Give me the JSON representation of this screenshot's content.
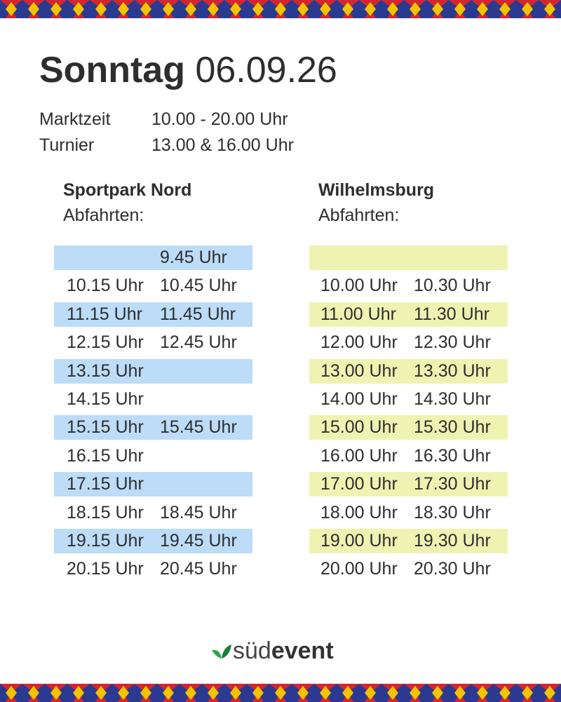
{
  "header": {
    "day": "Sonntag",
    "date": "06.09.26"
  },
  "info": [
    [
      "Marktzeit",
      "10.00 - 20.00 Uhr"
    ],
    [
      "Turnier",
      "13.00 & 16.00 Uhr"
    ]
  ],
  "columns": [
    {
      "name": "Sportpark Nord",
      "label": "Abfahrten:",
      "color": "#bcdcf7",
      "rows": [
        [
          null,
          "9.45 Uhr"
        ],
        [
          "10.15 Uhr",
          "10.45 Uhr"
        ],
        [
          "11.15 Uhr",
          "11.45 Uhr"
        ],
        [
          "12.15 Uhr",
          "12.45 Uhr"
        ],
        [
          "13.15 Uhr",
          null
        ],
        [
          "14.15 Uhr",
          null
        ],
        [
          "15.15 Uhr",
          "15.45 Uhr"
        ],
        [
          "16.15 Uhr",
          null
        ],
        [
          "17.15 Uhr",
          null
        ],
        [
          "18.15 Uhr",
          "18.45 Uhr"
        ],
        [
          "19.15 Uhr",
          "19.45 Uhr"
        ],
        [
          "20.15 Uhr",
          "20.45 Uhr"
        ]
      ]
    },
    {
      "name": "Wilhelmsburg",
      "label": "Abfahrten:",
      "color": "#eff3b2",
      "rows": [
        [
          null,
          null
        ],
        [
          "10.00 Uhr",
          "10.30 Uhr"
        ],
        [
          "11.00 Uhr",
          "11.30 Uhr"
        ],
        [
          "12.00 Uhr",
          "12.30 Uhr"
        ],
        [
          "13.00 Uhr",
          "13.30 Uhr"
        ],
        [
          "14.00 Uhr",
          "14.30 Uhr"
        ],
        [
          "15.00 Uhr",
          "15.30 Uhr"
        ],
        [
          "16.00 Uhr",
          "16.30 Uhr"
        ],
        [
          "17.00 Uhr",
          "17.30 Uhr"
        ],
        [
          "18.00 Uhr",
          "18.30 Uhr"
        ],
        [
          "19.00 Uhr",
          "19.30 Uhr"
        ],
        [
          "20.00 Uhr",
          "20.30 Uhr"
        ]
      ]
    }
  ],
  "logo": {
    "part1": "süd",
    "part2": "event"
  }
}
